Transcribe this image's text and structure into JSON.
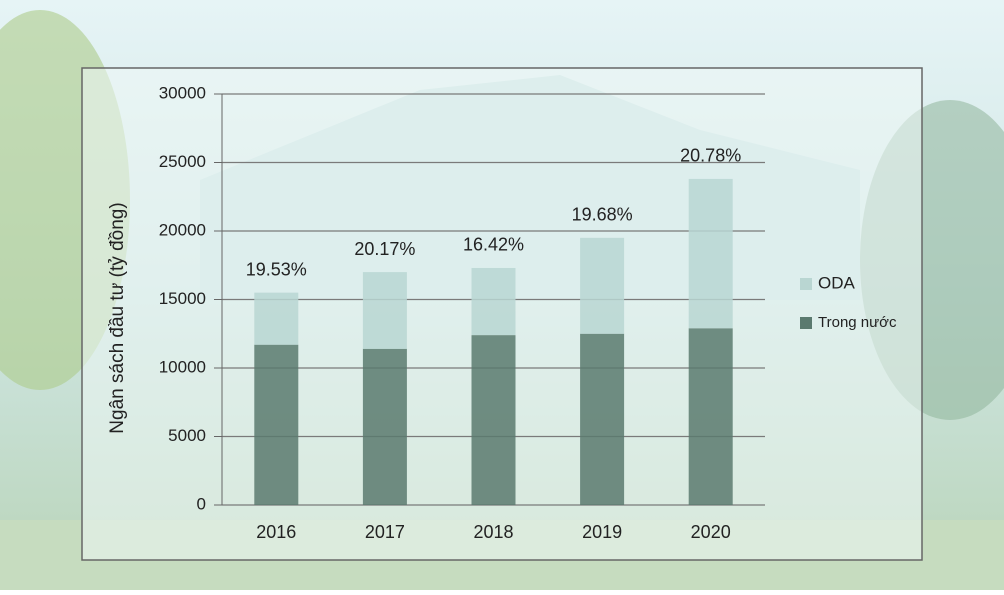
{
  "chart_data": {
    "type": "stacked_bar",
    "y_label": "Ngân sách đầu tư (tỷ đồng)",
    "categories": [
      "2016",
      "2017",
      "2018",
      "2019",
      "2020"
    ],
    "series": [
      {
        "name": "Trong nước",
        "color": "#5b7a6f",
        "values": [
          11700,
          11400,
          12400,
          12500,
          12900
        ]
      },
      {
        "name": "ODA",
        "color": "#b9d6d2",
        "values": [
          3800,
          5600,
          4900,
          7000,
          10900
        ]
      }
    ],
    "annotations": [
      "19.53%",
      "20.17%",
      "16.42%",
      "19.68%",
      "20.78%"
    ],
    "ylim": [
      0,
      30000
    ],
    "yticks": [
      0,
      5000,
      10000,
      15000,
      20000,
      25000,
      30000
    ],
    "grid": true,
    "legend": "right"
  }
}
